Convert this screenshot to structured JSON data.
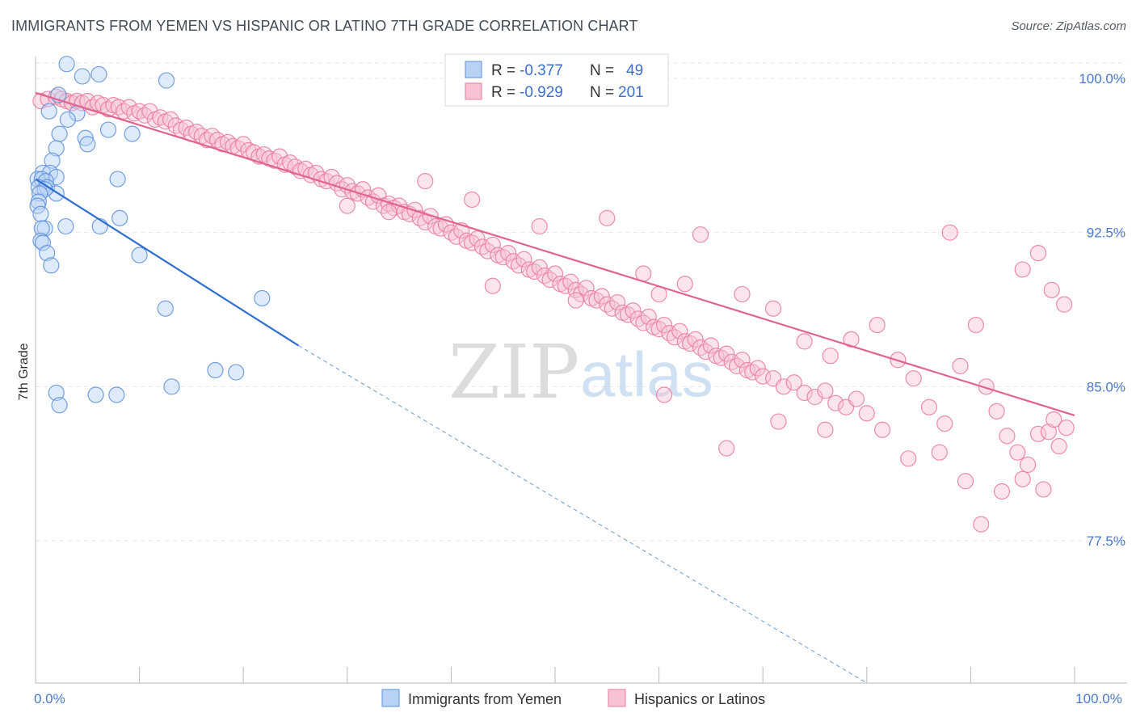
{
  "title": "IMMIGRANTS FROM YEMEN VS HISPANIC OR LATINO 7TH GRADE CORRELATION CHART",
  "source": "Source: ZipAtlas.com",
  "watermark": {
    "part1": "ZIP",
    "part2": "atlas"
  },
  "colors": {
    "blue": "#5b8fdb",
    "blue_fill": "#b8d2f3",
    "pink": "#e9789f",
    "pink_fill": "#f7c3d4",
    "tick": "#4a78c8"
  },
  "chart_data": {
    "type": "scatter",
    "xlabel": "",
    "ylabel": "7th Grade",
    "xlim": [
      0,
      100
    ],
    "ylim": [
      70.5,
      101
    ],
    "x_tick_labels": [
      {
        "value": 0,
        "label": "0.0%"
      },
      {
        "value": 100,
        "label": "100.0%"
      }
    ],
    "y_tick_labels": [
      {
        "value": 100,
        "label": "100.0%"
      },
      {
        "value": 92.5,
        "label": "92.5%"
      },
      {
        "value": 85,
        "label": "85.0%"
      },
      {
        "value": 77.5,
        "label": "77.5%"
      }
    ],
    "legend_top": [
      {
        "series": "blue",
        "r_label": "R =",
        "r": "-0.377",
        "n_label": "N =",
        "n": "49"
      },
      {
        "series": "pink",
        "r_label": "R =",
        "r": "-0.929",
        "n_label": "N =",
        "n": "201"
      }
    ],
    "series": [
      {
        "name": "Immigrants from Yemen",
        "color": "blue",
        "trend": {
          "x0": 0,
          "y0": 95.1,
          "x1": 25.3,
          "y1": 87.0,
          "dash_to_x": 80,
          "dash_to_y": 69.5
        },
        "points": [
          [
            3.0,
            100.7
          ],
          [
            6.1,
            100.2
          ],
          [
            4.5,
            100.1
          ],
          [
            12.6,
            99.9
          ],
          [
            2.2,
            99.2
          ],
          [
            1.3,
            98.4
          ],
          [
            4.0,
            98.3
          ],
          [
            3.1,
            98.0
          ],
          [
            2.3,
            97.3
          ],
          [
            4.8,
            97.1
          ],
          [
            7.0,
            97.5
          ],
          [
            9.3,
            97.3
          ],
          [
            5.0,
            96.8
          ],
          [
            2.0,
            96.6
          ],
          [
            1.6,
            96.0
          ],
          [
            0.7,
            95.4
          ],
          [
            1.4,
            95.4
          ],
          [
            2.0,
            95.2
          ],
          [
            0.2,
            95.1
          ],
          [
            0.6,
            95.1
          ],
          [
            1.0,
            95.0
          ],
          [
            0.3,
            94.7
          ],
          [
            1.1,
            94.7
          ],
          [
            2.0,
            94.4
          ],
          [
            0.9,
            94.6
          ],
          [
            0.4,
            94.4
          ],
          [
            0.3,
            94.0
          ],
          [
            7.9,
            95.1
          ],
          [
            0.2,
            93.8
          ],
          [
            0.5,
            93.4
          ],
          [
            8.1,
            93.2
          ],
          [
            6.2,
            92.8
          ],
          [
            0.9,
            92.7
          ],
          [
            2.9,
            92.8
          ],
          [
            0.6,
            92.7
          ],
          [
            0.5,
            92.1
          ],
          [
            0.7,
            92.0
          ],
          [
            1.1,
            91.5
          ],
          [
            10.0,
            91.4
          ],
          [
            1.5,
            90.9
          ],
          [
            21.8,
            89.3
          ],
          [
            12.5,
            88.8
          ],
          [
            17.3,
            85.8
          ],
          [
            19.3,
            85.7
          ],
          [
            13.1,
            85.0
          ],
          [
            2.0,
            84.7
          ],
          [
            5.8,
            84.6
          ],
          [
            7.8,
            84.6
          ],
          [
            2.3,
            84.1
          ]
        ]
      },
      {
        "name": "Hispanics or Latinos",
        "color": "pink",
        "trend": {
          "x0": 0,
          "y0": 99.3,
          "x1": 100,
          "y1": 83.6
        },
        "points": [
          [
            0.5,
            98.9
          ],
          [
            1.2,
            99.0
          ],
          [
            2.0,
            99.1
          ],
          [
            2.5,
            99.0
          ],
          [
            3.0,
            98.9
          ],
          [
            3.5,
            98.8
          ],
          [
            4.0,
            98.9
          ],
          [
            4.5,
            98.8
          ],
          [
            5.0,
            98.9
          ],
          [
            5.5,
            98.6
          ],
          [
            6.0,
            98.8
          ],
          [
            6.5,
            98.7
          ],
          [
            7.0,
            98.5
          ],
          [
            7.5,
            98.7
          ],
          [
            8.0,
            98.6
          ],
          [
            8.5,
            98.4
          ],
          [
            9.0,
            98.6
          ],
          [
            9.5,
            98.3
          ],
          [
            10.0,
            98.4
          ],
          [
            10.5,
            98.2
          ],
          [
            11.0,
            98.4
          ],
          [
            11.5,
            98.0
          ],
          [
            12.0,
            98.1
          ],
          [
            12.5,
            97.9
          ],
          [
            13.0,
            98.0
          ],
          [
            13.5,
            97.7
          ],
          [
            14.0,
            97.5
          ],
          [
            14.5,
            97.6
          ],
          [
            15.0,
            97.3
          ],
          [
            15.5,
            97.4
          ],
          [
            16.0,
            97.2
          ],
          [
            16.5,
            97.0
          ],
          [
            17.0,
            97.2
          ],
          [
            17.5,
            97.0
          ],
          [
            18.0,
            96.8
          ],
          [
            18.5,
            96.9
          ],
          [
            19.0,
            96.7
          ],
          [
            19.5,
            96.6
          ],
          [
            20.0,
            96.8
          ],
          [
            20.5,
            96.5
          ],
          [
            21.0,
            96.4
          ],
          [
            21.5,
            96.2
          ],
          [
            22.0,
            96.3
          ],
          [
            22.5,
            96.1
          ],
          [
            23.0,
            96.0
          ],
          [
            23.5,
            96.2
          ],
          [
            24.0,
            95.8
          ],
          [
            24.5,
            95.9
          ],
          [
            25.0,
            95.7
          ],
          [
            25.5,
            95.5
          ],
          [
            26.0,
            95.6
          ],
          [
            26.5,
            95.3
          ],
          [
            27.0,
            95.4
          ],
          [
            27.5,
            95.1
          ],
          [
            28.0,
            95.0
          ],
          [
            28.5,
            95.2
          ],
          [
            29.0,
            94.9
          ],
          [
            29.5,
            94.6
          ],
          [
            30.0,
            94.8
          ],
          [
            30.5,
            94.5
          ],
          [
            31.0,
            94.4
          ],
          [
            31.5,
            94.6
          ],
          [
            32.0,
            94.2
          ],
          [
            32.5,
            94.0
          ],
          [
            33.0,
            94.3
          ],
          [
            33.5,
            93.8
          ],
          [
            34.0,
            93.9
          ],
          [
            34.5,
            93.7
          ],
          [
            35.0,
            93.8
          ],
          [
            35.5,
            93.5
          ],
          [
            36.0,
            93.4
          ],
          [
            36.5,
            93.6
          ],
          [
            37.0,
            93.2
          ],
          [
            37.5,
            93.0
          ],
          [
            38.0,
            93.3
          ],
          [
            38.5,
            92.8
          ],
          [
            39.0,
            92.7
          ],
          [
            39.5,
            92.9
          ],
          [
            40.0,
            92.5
          ],
          [
            40.5,
            92.3
          ],
          [
            41.0,
            92.6
          ],
          [
            41.5,
            92.1
          ],
          [
            42.0,
            92.0
          ],
          [
            42.5,
            92.2
          ],
          [
            43.0,
            91.8
          ],
          [
            43.5,
            91.6
          ],
          [
            44.0,
            91.9
          ],
          [
            44.5,
            91.4
          ],
          [
            45.0,
            91.3
          ],
          [
            45.5,
            91.5
          ],
          [
            46.0,
            91.1
          ],
          [
            46.5,
            90.9
          ],
          [
            47.0,
            91.2
          ],
          [
            47.5,
            90.7
          ],
          [
            48.0,
            90.6
          ],
          [
            48.5,
            90.8
          ],
          [
            49.0,
            90.4
          ],
          [
            49.5,
            90.2
          ],
          [
            50.0,
            90.5
          ],
          [
            50.5,
            90.0
          ],
          [
            51.0,
            89.9
          ],
          [
            51.5,
            90.1
          ],
          [
            52.0,
            89.7
          ],
          [
            52.5,
            89.5
          ],
          [
            53.0,
            89.8
          ],
          [
            53.5,
            89.3
          ],
          [
            54.0,
            89.2
          ],
          [
            54.5,
            89.4
          ],
          [
            55.0,
            89.0
          ],
          [
            55.5,
            88.8
          ],
          [
            56.0,
            89.1
          ],
          [
            56.5,
            88.6
          ],
          [
            57.0,
            88.5
          ],
          [
            57.5,
            88.7
          ],
          [
            58.0,
            88.3
          ],
          [
            58.5,
            88.1
          ],
          [
            59.0,
            88.4
          ],
          [
            59.5,
            87.9
          ],
          [
            60.0,
            87.8
          ],
          [
            60.5,
            88.0
          ],
          [
            61.0,
            87.6
          ],
          [
            61.5,
            87.4
          ],
          [
            62.0,
            87.7
          ],
          [
            62.5,
            87.2
          ],
          [
            63.0,
            87.1
          ],
          [
            63.5,
            87.3
          ],
          [
            64.0,
            86.9
          ],
          [
            64.5,
            86.7
          ],
          [
            65.0,
            87.0
          ],
          [
            65.5,
            86.5
          ],
          [
            66.0,
            86.4
          ],
          [
            66.5,
            86.6
          ],
          [
            67.0,
            86.2
          ],
          [
            67.5,
            86.0
          ],
          [
            68.0,
            86.3
          ],
          [
            68.5,
            85.8
          ],
          [
            69.0,
            85.7
          ],
          [
            69.5,
            85.9
          ],
          [
            70.0,
            85.5
          ],
          [
            71.0,
            85.4
          ],
          [
            72.0,
            85.0
          ],
          [
            73.0,
            85.2
          ],
          [
            74.0,
            84.7
          ],
          [
            75.0,
            84.5
          ],
          [
            76.0,
            84.8
          ],
          [
            77.0,
            84.2
          ],
          [
            78.0,
            84.0
          ],
          [
            79.0,
            84.4
          ],
          [
            80.0,
            83.7
          ],
          [
            37.5,
            95.0
          ],
          [
            42.0,
            94.1
          ],
          [
            55.0,
            93.2
          ],
          [
            64.0,
            92.4
          ],
          [
            88.0,
            92.5
          ],
          [
            95.0,
            90.7
          ],
          [
            99.0,
            89.0
          ],
          [
            30.0,
            93.8
          ],
          [
            34.0,
            93.5
          ],
          [
            44.0,
            89.9
          ],
          [
            48.5,
            92.8
          ],
          [
            52.0,
            89.2
          ],
          [
            58.5,
            90.5
          ],
          [
            60.0,
            89.5
          ],
          [
            62.5,
            90.0
          ],
          [
            68.0,
            89.5
          ],
          [
            71.0,
            88.8
          ],
          [
            74.0,
            87.2
          ],
          [
            76.5,
            86.5
          ],
          [
            78.5,
            87.3
          ],
          [
            81.0,
            88.0
          ],
          [
            83.0,
            86.3
          ],
          [
            84.5,
            85.4
          ],
          [
            86.0,
            84.0
          ],
          [
            87.5,
            83.2
          ],
          [
            89.0,
            86.0
          ],
          [
            90.5,
            88.0
          ],
          [
            91.5,
            85.0
          ],
          [
            92.5,
            83.8
          ],
          [
            93.5,
            82.6
          ],
          [
            94.5,
            81.8
          ],
          [
            95.5,
            81.2
          ],
          [
            96.5,
            82.7
          ],
          [
            97.5,
            82.8
          ],
          [
            98.0,
            83.4
          ],
          [
            60.5,
            84.6
          ],
          [
            66.5,
            82.0
          ],
          [
            71.5,
            83.3
          ],
          [
            76.0,
            82.9
          ],
          [
            81.5,
            82.9
          ],
          [
            84.0,
            81.5
          ],
          [
            87.0,
            81.8
          ],
          [
            89.5,
            80.4
          ],
          [
            91.0,
            78.3
          ],
          [
            93.0,
            79.9
          ],
          [
            95.0,
            80.5
          ],
          [
            97.0,
            80.0
          ],
          [
            98.5,
            82.1
          ],
          [
            99.2,
            83.0
          ],
          [
            96.5,
            91.5
          ],
          [
            97.8,
            89.7
          ]
        ]
      }
    ]
  }
}
